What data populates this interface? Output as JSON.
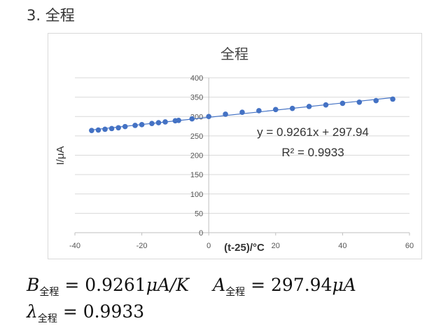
{
  "heading": "3. 全程",
  "chart_data": {
    "type": "scatter",
    "title": "全程",
    "xlabel": "(t-25)/°C",
    "ylabel": "I/μA",
    "xlim": [
      -40,
      60
    ],
    "ylim": [
      0,
      400
    ],
    "xticks": [
      -40,
      -20,
      0,
      20,
      40,
      60
    ],
    "yticks": [
      0,
      50,
      100,
      150,
      200,
      250,
      300,
      350,
      400
    ],
    "grid": "horizontal",
    "series": [
      {
        "color": "#4472c4",
        "points": [
          [
            -35,
            264
          ],
          [
            -33,
            265
          ],
          [
            -31,
            267
          ],
          [
            -29,
            269
          ],
          [
            -27,
            271
          ],
          [
            -25,
            274
          ],
          [
            -22,
            277
          ],
          [
            -20,
            279
          ],
          [
            -17,
            282
          ],
          [
            -15,
            284
          ],
          [
            -13,
            286
          ],
          [
            -10,
            289
          ],
          [
            -9,
            290
          ],
          [
            -5,
            294
          ],
          [
            0,
            300
          ],
          [
            5,
            306
          ],
          [
            10,
            311
          ],
          [
            15,
            315
          ],
          [
            20,
            318
          ],
          [
            25,
            321
          ],
          [
            30,
            326
          ],
          [
            35,
            330
          ],
          [
            40,
            334
          ],
          [
            45,
            337
          ],
          [
            50,
            341
          ],
          [
            55,
            345
          ]
        ]
      }
    ],
    "trendline": {
      "slope": 0.9261,
      "intercept": 297.94,
      "color": "#4472c4"
    },
    "annotations": [
      "y = 0.9261x + 297.94",
      "R² = 0.9933"
    ]
  },
  "formulas": {
    "B_symbol": "B",
    "B_sub": "全程",
    "B_value": "= 0.9261",
    "B_unit": "μA/K",
    "A_symbol": "A",
    "A_sub": "全程",
    "A_value": "= 297.94",
    "A_unit": "μA",
    "lambda_symbol": "λ",
    "lambda_sub": "全程",
    "lambda_value": "= 0.9933"
  }
}
